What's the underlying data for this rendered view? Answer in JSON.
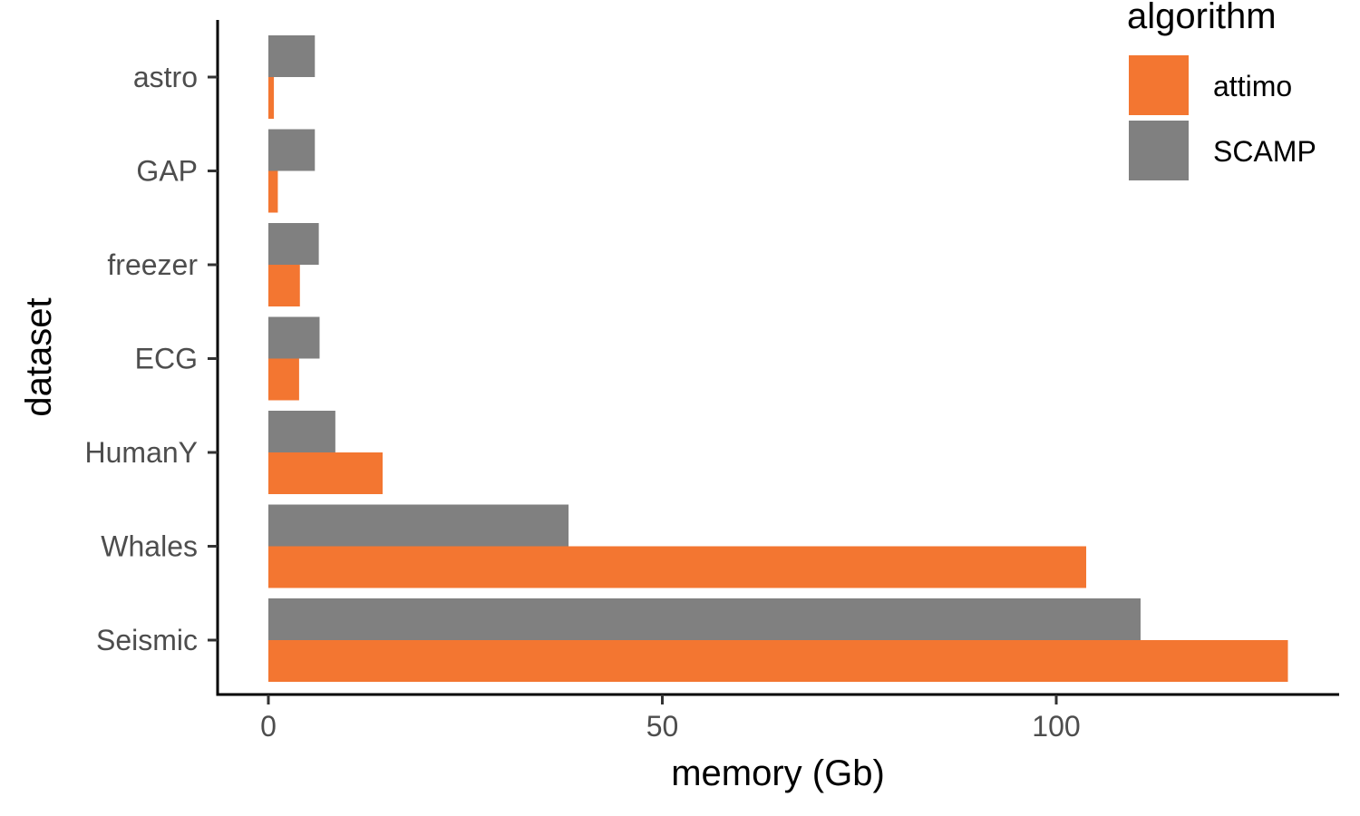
{
  "chart_data": {
    "type": "bar",
    "orientation": "horizontal",
    "title": "",
    "xlabel": "memory (Gb)",
    "ylabel": "dataset",
    "xlim": [
      -6.5,
      135
    ],
    "x_ticks": [
      0,
      50,
      100
    ],
    "categories": [
      "astro",
      "GAP",
      "freezer",
      "ECG",
      "HumanY",
      "Whales",
      "Seismic"
    ],
    "series": [
      {
        "name": "attimo",
        "color": "#f37631",
        "values": [
          0.7,
          1.2,
          4.0,
          3.9,
          14.5,
          103.8,
          129.4
        ]
      },
      {
        "name": "SCAMP",
        "color": "#808080",
        "values": [
          5.9,
          5.9,
          6.4,
          6.5,
          8.5,
          38.1,
          110.7
        ]
      }
    ],
    "legend": {
      "title": "algorithm",
      "position": "top-right",
      "entries": [
        {
          "label": "attimo",
          "color": "#f37631"
        },
        {
          "label": "SCAMP",
          "color": "#808080"
        }
      ]
    },
    "grid": false
  }
}
